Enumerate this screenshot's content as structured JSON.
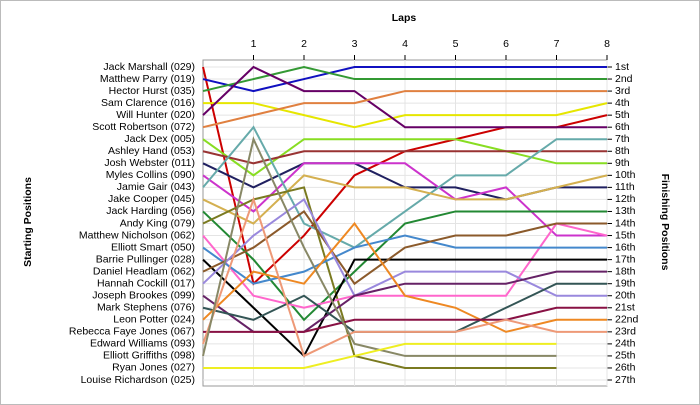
{
  "chart_data": {
    "type": "lap",
    "title": "Laps",
    "y_label": "Starting Positions",
    "y2_label": "Finishing Positions",
    "xlim": [
      0,
      8
    ],
    "xticks": [
      1,
      2,
      3,
      4,
      5,
      6,
      7,
      8
    ],
    "ylim": [
      1,
      27
    ],
    "grid": true,
    "yticks": [
      {
        "value": 1,
        "label": "1st"
      },
      {
        "value": 2,
        "label": "2nd"
      },
      {
        "value": 3,
        "label": "3rd"
      },
      {
        "value": 4,
        "label": "4th"
      },
      {
        "value": 5,
        "label": "5th"
      },
      {
        "value": 6,
        "label": "6th"
      },
      {
        "value": 7,
        "label": "7th"
      },
      {
        "value": 8,
        "label": "8th"
      },
      {
        "value": 9,
        "label": "9th"
      },
      {
        "value": 10,
        "label": "10th"
      },
      {
        "value": 11,
        "label": "11th"
      },
      {
        "value": 12,
        "label": "12th"
      },
      {
        "value": 13,
        "label": "13th"
      },
      {
        "value": 14,
        "label": "14th"
      },
      {
        "value": 15,
        "label": "15th"
      },
      {
        "value": 16,
        "label": "16th"
      },
      {
        "value": 17,
        "label": "17th"
      },
      {
        "value": 18,
        "label": "18th"
      },
      {
        "value": 19,
        "label": "19th"
      },
      {
        "value": 20,
        "label": "20th"
      },
      {
        "value": 21,
        "label": "21st"
      },
      {
        "value": 22,
        "label": "22nd"
      },
      {
        "value": 23,
        "label": "23rd"
      },
      {
        "value": 24,
        "label": "24th"
      },
      {
        "value": 25,
        "label": "25th"
      },
      {
        "value": 26,
        "label": "26th"
      },
      {
        "value": 27,
        "label": "27th"
      }
    ],
    "series": [
      {
        "name": "Jack Marshall (029)",
        "color": "#cc0000",
        "values": [
          1,
          19,
          15,
          10,
          8,
          7,
          6,
          6,
          5
        ]
      },
      {
        "name": "Matthew Parry (019)",
        "color": "#1010c0",
        "values": [
          2,
          3,
          2,
          1,
          1,
          1,
          1,
          1,
          1
        ]
      },
      {
        "name": "Hector Hurst (035)",
        "color": "#339933",
        "values": [
          3,
          2,
          1,
          2,
          2,
          2,
          2,
          2,
          2
        ]
      },
      {
        "name": "Sam Clarence (016)",
        "color": "#e6e600",
        "values": [
          4,
          4,
          5,
          6,
          5,
          5,
          5,
          5,
          4
        ]
      },
      {
        "name": "Will Hunter (020)",
        "color": "#660066",
        "values": [
          5,
          1,
          3,
          3,
          6,
          6,
          6,
          6,
          6
        ]
      },
      {
        "name": "Scott Robertson (072)",
        "color": "#e08040",
        "values": [
          6,
          5,
          4,
          4,
          3,
          3,
          3,
          3,
          3
        ]
      },
      {
        "name": "Jack Dex (005)",
        "color": "#88dd22",
        "values": [
          7,
          10,
          7,
          7,
          7,
          7,
          8,
          9,
          9
        ]
      },
      {
        "name": "Ashley Hand (053)",
        "color": "#993333",
        "values": [
          8,
          9,
          8,
          8,
          8,
          8,
          8,
          8,
          8
        ]
      },
      {
        "name": "Josh Webster (011)",
        "color": "#202060",
        "values": [
          9,
          11,
          9,
          9,
          11,
          11,
          12,
          11,
          11
        ]
      },
      {
        "name": "Myles Collins (090)",
        "color": "#cc33cc",
        "values": [
          10,
          13,
          9,
          9,
          9,
          12,
          11,
          15,
          15
        ]
      },
      {
        "name": "Jamie Gair (043)",
        "color": "#66aaaa",
        "values": [
          11,
          6,
          14,
          16,
          13,
          10,
          10,
          7,
          7
        ]
      },
      {
        "name": "Jake Cooper (045)",
        "color": "#d4b050",
        "values": [
          12,
          14,
          10,
          11,
          11,
          12,
          12,
          11,
          10
        ]
      },
      {
        "name": "Jack Harding (056)",
        "color": "#228833",
        "values": [
          13,
          17,
          22,
          18,
          14,
          13,
          13,
          13,
          13
        ]
      },
      {
        "name": "Andy King (079)",
        "color": "#7a7a20",
        "values": [
          14,
          12,
          11,
          25,
          26,
          26,
          26,
          26,
          null
        ]
      },
      {
        "name": "Matthew Nicholson (062)",
        "color": "#ff66cc",
        "values": [
          15,
          20,
          21,
          20,
          20,
          20,
          20,
          14,
          15
        ]
      },
      {
        "name": "Elliott Smart (050)",
        "color": "#4488cc",
        "values": [
          16,
          19,
          18,
          16,
          15,
          16,
          16,
          16,
          16
        ]
      },
      {
        "name": "Barrie Pullinger (028)",
        "color": "#000000",
        "values": [
          17,
          21,
          25,
          17,
          17,
          17,
          17,
          17,
          17
        ]
      },
      {
        "name": "Daniel Headlam (062)",
        "color": "#8b5a2b",
        "values": [
          18,
          16,
          13,
          19,
          16,
          15,
          15,
          14,
          14
        ]
      },
      {
        "name": "Hannah Cockill (017)",
        "color": "#9988dd",
        "values": [
          19,
          15,
          12,
          20,
          18,
          18,
          18,
          20,
          20
        ]
      },
      {
        "name": "Joseph Brookes (099)",
        "color": "#662266",
        "values": [
          20,
          23,
          23,
          20,
          19,
          19,
          19,
          18,
          18
        ]
      },
      {
        "name": "Mark Stephens (076)",
        "color": "#335555",
        "values": [
          21,
          22,
          20,
          23,
          23,
          23,
          21,
          19,
          19
        ]
      },
      {
        "name": "Leon Potter (024)",
        "color": "#ee8822",
        "values": [
          22,
          18,
          19,
          14,
          20,
          21,
          23,
          22,
          22
        ]
      },
      {
        "name": "Rebecca Faye Jones (067)",
        "color": "#881144",
        "values": [
          23,
          23,
          23,
          22,
          22,
          22,
          22,
          21,
          21
        ]
      },
      {
        "name": "Edward Williams (093)",
        "color": "#ee9977",
        "values": [
          24,
          12,
          25,
          23,
          23,
          23,
          22,
          23,
          23
        ]
      },
      {
        "name": "Elliott Griffiths (098)",
        "color": "#888866",
        "values": [
          25,
          7,
          16,
          24,
          25,
          25,
          25,
          25,
          null
        ]
      },
      {
        "name": "Ryan Jones (027)",
        "color": "#eeee22",
        "values": [
          26,
          26,
          26,
          25,
          24,
          24,
          24,
          24,
          null
        ]
      },
      {
        "name": "Louise Richardson (025)",
        "color": "#999999",
        "values": [
          27,
          null,
          null,
          null,
          null,
          null,
          null,
          null,
          null
        ]
      }
    ]
  }
}
